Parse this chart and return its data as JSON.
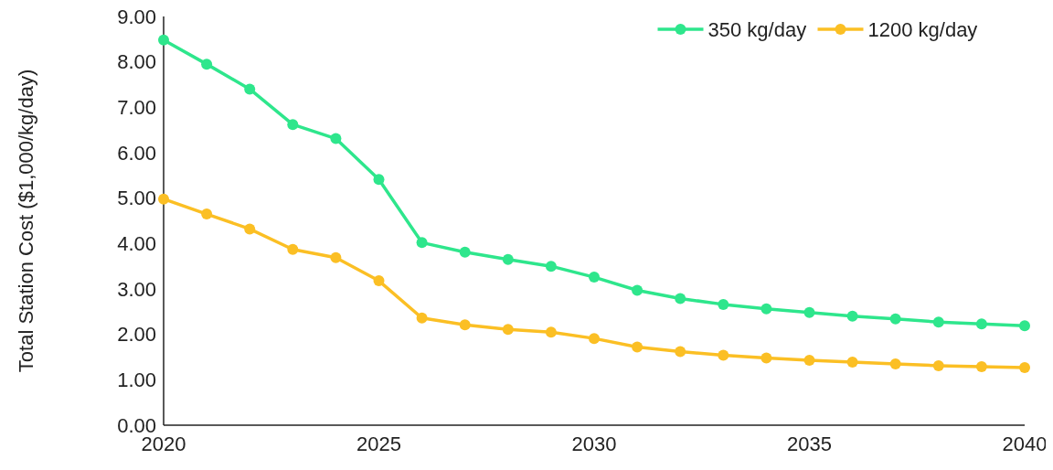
{
  "chart_data": {
    "type": "line",
    "ylabel": "Total Station Cost ($1,000/kg/day)",
    "x": [
      2020,
      2021,
      2022,
      2023,
      2024,
      2025,
      2026,
      2027,
      2028,
      2029,
      2030,
      2031,
      2032,
      2033,
      2034,
      2035,
      2036,
      2037,
      2038,
      2039,
      2040
    ],
    "xlim": [
      2020,
      2040
    ],
    "xticks": [
      2020,
      2025,
      2030,
      2035,
      2040
    ],
    "ylim": [
      0,
      9
    ],
    "yticks": [
      {
        "value": 0,
        "label": "0.00"
      },
      {
        "value": 1,
        "label": "1.00"
      },
      {
        "value": 2,
        "label": "2.00"
      },
      {
        "value": 3,
        "label": "3.00"
      },
      {
        "value": 4,
        "label": "4.00"
      },
      {
        "value": 5,
        "label": "5.00"
      },
      {
        "value": 6,
        "label": "6.00"
      },
      {
        "value": 7,
        "label": "7.00"
      },
      {
        "value": 8,
        "label": "8.00"
      },
      {
        "value": 9,
        "label": "9.00"
      }
    ],
    "grid": false,
    "legend": "top right",
    "marker": "circle",
    "series": [
      {
        "name": "350 kg/day",
        "color": "#2ee68c",
        "values": [
          8.48,
          7.95,
          7.4,
          6.62,
          6.31,
          5.41,
          4.02,
          3.81,
          3.65,
          3.5,
          3.26,
          2.97,
          2.79,
          2.66,
          2.56,
          2.48,
          2.4,
          2.34,
          2.27,
          2.23,
          2.19
        ]
      },
      {
        "name": "1200 kg/day",
        "color": "#fbbf24",
        "values": [
          4.98,
          4.65,
          4.32,
          3.87,
          3.69,
          3.18,
          2.36,
          2.21,
          2.11,
          2.05,
          1.91,
          1.72,
          1.62,
          1.54,
          1.48,
          1.43,
          1.39,
          1.35,
          1.31,
          1.29,
          1.27
        ]
      }
    ]
  }
}
